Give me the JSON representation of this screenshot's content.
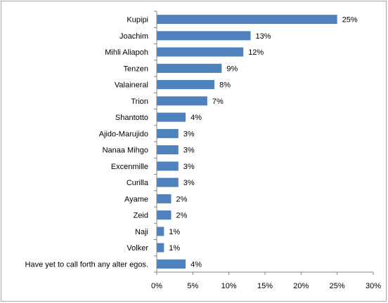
{
  "chart_data": {
    "type": "bar",
    "orientation": "horizontal",
    "categories": [
      "Kupipi",
      "Joachim",
      "Mihli Aliapoh",
      "Tenzen",
      "Valaineral",
      "Trion",
      "Shantotto",
      "Ajido-Marujido",
      "Nanaa Mihgo",
      "Excenmille",
      "Curilla",
      "Ayame",
      "Zeid",
      "Naji",
      "Volker",
      "Have yet to call forth any alter egos."
    ],
    "values": [
      25,
      13,
      12,
      9,
      8,
      7,
      4,
      3,
      3,
      3,
      3,
      2,
      2,
      1,
      1,
      4
    ],
    "data_labels": [
      "25%",
      "13%",
      "12%",
      "9%",
      "8%",
      "7%",
      "4%",
      "3%",
      "3%",
      "3%",
      "3%",
      "2%",
      "2%",
      "1%",
      "1%",
      "4%"
    ],
    "x_ticks": [
      0,
      5,
      10,
      15,
      20,
      25,
      30
    ],
    "x_tick_labels": [
      "0%",
      "5%",
      "10%",
      "15%",
      "20%",
      "25%",
      "30%"
    ],
    "xlim": [
      0,
      30
    ],
    "title": "",
    "xlabel": "",
    "ylabel": "",
    "grid": false,
    "legend": "none",
    "bar_color": "#4f81bd",
    "axis_color": "#868686"
  }
}
